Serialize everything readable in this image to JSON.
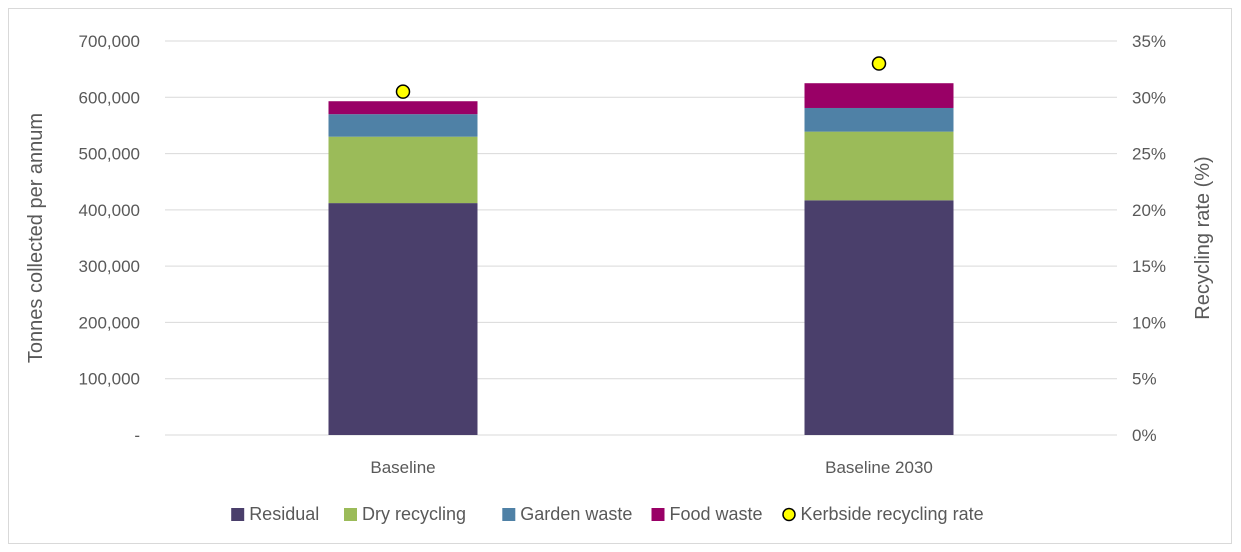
{
  "chart_data": {
    "type": "bar",
    "stacked": true,
    "categories": [
      "Baseline",
      "Baseline 2030"
    ],
    "series": [
      {
        "name": "Residual",
        "color": "#4a3f6b",
        "values": [
          412000,
          417000
        ]
      },
      {
        "name": "Dry recycling",
        "color": "#9bbb59",
        "values": [
          118000,
          122000
        ]
      },
      {
        "name": "Garden waste",
        "color": "#4f81a6",
        "values": [
          40000,
          42000
        ]
      },
      {
        "name": "Food waste",
        "color": "#990066",
        "values": [
          23000,
          44000
        ]
      }
    ],
    "secondary_series": {
      "name": "Kerbside recycling rate",
      "type": "scatter",
      "color": "#ffff00",
      "edge_color": "#000000",
      "values": [
        30.5,
        33.0
      ],
      "axis": "right"
    },
    "ylabel": "Tonnes collected per annum",
    "y2label": "Recycling rate (%)",
    "ylim": [
      0,
      700000
    ],
    "y2lim": [
      0,
      35
    ],
    "yticks": [
      "-",
      "100,000",
      "200,000",
      "300,000",
      "400,000",
      "500,000",
      "600,000",
      "700,000"
    ],
    "y2ticks": [
      "0%",
      "5%",
      "10%",
      "15%",
      "20%",
      "25%",
      "30%",
      "35%"
    ],
    "grid": true,
    "legend": "bottom"
  }
}
